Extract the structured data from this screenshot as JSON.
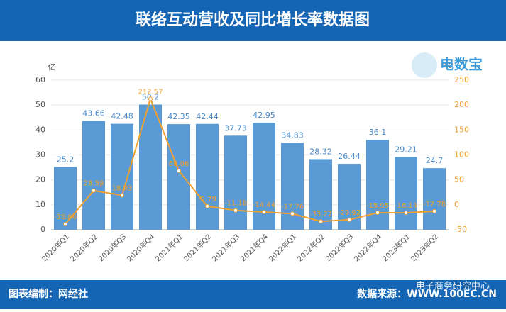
{
  "chart_data": {
    "type": "bar-line",
    "title": "联络互动营收及同比增长率数据图",
    "y_label": "亿",
    "y2_label": "%",
    "categories": [
      "2020年Q1",
      "2020年Q2",
      "2020年Q3",
      "2020年Q4",
      "2021年Q1",
      "2021年Q2",
      "2021年Q3",
      "2021年Q4",
      "2022年Q1",
      "2022年Q2",
      "2022年Q3",
      "2022年Q4",
      "2023年Q1",
      "2023年Q2"
    ],
    "series": [
      {
        "name": "营收",
        "type": "bar",
        "color": "#5b9bd5",
        "values": [
          25.2,
          43.66,
          42.48,
          50.2,
          42.35,
          42.44,
          37.73,
          42.95,
          34.83,
          28.32,
          26.44,
          36.1,
          29.21,
          24.7
        ]
      },
      {
        "name": "同比增长率",
        "type": "line",
        "axis": "y2",
        "color": "#f0a030",
        "values": [
          -38.86,
          28.59,
          18.93,
          212.57,
          68.06,
          -2.79,
          -11.18,
          -14.44,
          -17.76,
          -33.27,
          -29.92,
          -15.95,
          -16.14,
          -12.78
        ]
      }
    ],
    "ylim": [
      0,
      60
    ],
    "yticks": [
      0,
      10,
      20,
      30,
      40,
      50,
      60
    ],
    "y2lim": [
      -50,
      250
    ],
    "y2ticks": [
      -50,
      0,
      50,
      100,
      150,
      200,
      250
    ],
    "grid": true,
    "logo": "电数宝",
    "footer_left": "图表编制：网经社",
    "footer_right": "数据来源：WWW.100EC.CN",
    "watermark": "电子商务研究中心"
  }
}
